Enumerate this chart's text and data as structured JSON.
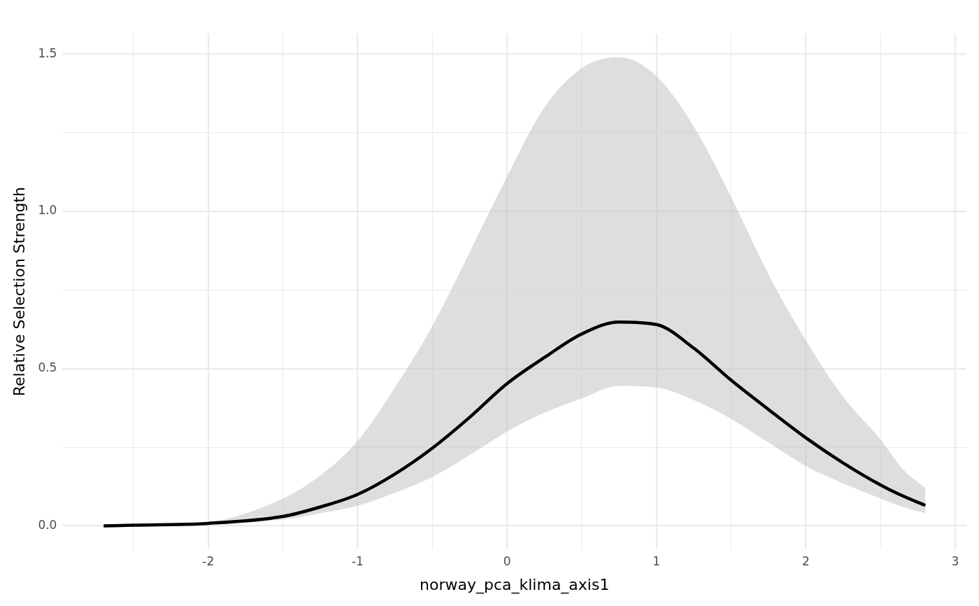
{
  "chart_data": {
    "type": "line",
    "xlabel": "norway_pca_klima_axis1",
    "ylabel": "Relative Selection Strength",
    "xlim": [
      -2.975,
      3.075
    ],
    "ylim": [
      -0.075,
      1.565
    ],
    "xticks": [
      {
        "value": -2.5,
        "label": null
      },
      -2,
      {
        "value": -1.5,
        "label": null
      },
      -1,
      {
        "value": -0.5,
        "label": null
      },
      0,
      {
        "value": 0.5,
        "label": null
      },
      1,
      {
        "value": 1.5,
        "label": null
      },
      2,
      {
        "value": 2.5,
        "label": null
      },
      3
    ],
    "yticks": [
      {
        "value": 0,
        "label": "0.0"
      },
      {
        "value": 0.25,
        "label": null
      },
      {
        "value": 0.5,
        "label": "0.5"
      },
      {
        "value": 0.75,
        "label": null
      },
      {
        "value": 1,
        "label": "1.0"
      },
      {
        "value": 1.25,
        "label": null
      },
      {
        "value": 1.5,
        "label": "1.5"
      }
    ],
    "grid": true,
    "legend": false,
    "marker": "none",
    "line_style": "solid",
    "series": [
      {
        "color": "#000000",
        "x": [
          -2.7,
          -2.5,
          -2.0,
          -1.5,
          -1.25,
          -1.0,
          -0.75,
          -0.5,
          -0.25,
          0,
          0.25,
          0.5,
          0.75,
          1.0,
          1.25,
          1.5,
          1.75,
          2.0,
          2.25,
          2.5,
          2.65,
          2.8
        ],
        "values": [
          0,
          0.002,
          0.008,
          0.03,
          0.06,
          0.1,
          0.165,
          0.247,
          0.345,
          0.452,
          0.535,
          0.61,
          0.648,
          0.64,
          0.565,
          0.463,
          0.37,
          0.28,
          0.2,
          0.13,
          0.095,
          0.065
        ],
        "lower": [
          0,
          0.001,
          0.005,
          0.02,
          0.04,
          0.064,
          0.105,
          0.155,
          0.225,
          0.3,
          0.36,
          0.405,
          0.445,
          0.44,
          0.4,
          0.34,
          0.265,
          0.19,
          0.135,
          0.087,
          0.06,
          0.04
        ],
        "upper": [
          0,
          0.004,
          0.013,
          0.087,
          0.16,
          0.27,
          0.44,
          0.635,
          0.87,
          1.11,
          1.33,
          1.455,
          1.49,
          1.43,
          1.27,
          1.045,
          0.8,
          0.59,
          0.41,
          0.275,
          0.18,
          0.12
        ]
      }
    ]
  }
}
